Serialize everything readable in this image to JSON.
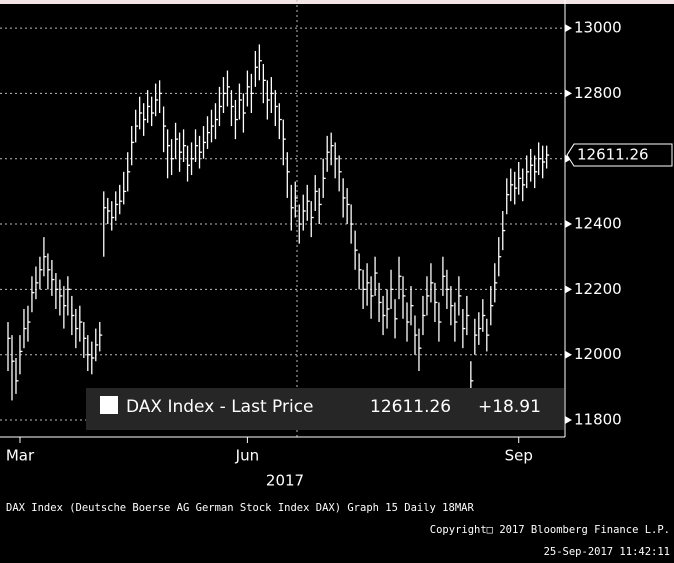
{
  "chart_data": {
    "type": "hlc",
    "ylim": [
      11748,
      13086
    ],
    "yticks": [
      11800,
      12000,
      12200,
      12400,
      12600,
      12800,
      13000
    ],
    "grid": true,
    "color": "#ffffff",
    "xticks": [
      {
        "value": 3,
        "label": "Mar"
      },
      {
        "value": 60,
        "label": "Jun"
      },
      {
        "value": 128,
        "label": "Sep"
      }
    ],
    "xlabel": "2017",
    "close": [
      12050,
      11980,
      11920,
      12010,
      12080,
      12100,
      12190,
      12220,
      12260,
      12300,
      12260,
      12230,
      12200,
      12180,
      12150,
      12200,
      12120,
      12080,
      12100,
      12050,
      12000,
      11990,
      12030,
      12060,
      12450,
      12440,
      12420,
      12460,
      12470,
      12500,
      12560,
      12650,
      12700,
      12740,
      12720,
      12760,
      12740,
      12780,
      12800,
      12700,
      12640,
      12600,
      12660,
      12620,
      12640,
      12580,
      12600,
      12640,
      12620,
      12650,
      12680,
      12700,
      12720,
      12760,
      12800,
      12820,
      12760,
      12720,
      12780,
      12740,
      12820,
      12800,
      12880,
      12900,
      12840,
      12780,
      12800,
      12760,
      12720,
      12660,
      12560,
      12450,
      12480,
      12400,
      12440,
      12470,
      12420,
      12500,
      12460,
      12540,
      12620,
      12640,
      12600,
      12560,
      12480,
      12460,
      12400,
      12320,
      12260,
      12200,
      12220,
      12180,
      12250,
      12160,
      12120,
      12140,
      12200,
      12110,
      12240,
      12180,
      12100,
      12150,
      12060,
      12020,
      12120,
      12180,
      12220,
      12160,
      12100,
      12240,
      12200,
      12150,
      12100,
      12180,
      12080,
      12120,
      11920,
      12060,
      12080,
      12120,
      12060,
      12150,
      12220,
      12300,
      12380,
      12490,
      12520,
      12510,
      12540,
      12520,
      12560,
      12580,
      12560,
      12600,
      12590,
      12611.26
    ],
    "high": [
      12100,
      12060,
      11990,
      12060,
      12140,
      12150,
      12240,
      12270,
      12300,
      12360,
      12310,
      12290,
      12250,
      12230,
      12210,
      12240,
      12180,
      12140,
      12150,
      12100,
      12060,
      12040,
      12080,
      12100,
      12500,
      12480,
      12470,
      12500,
      12520,
      12560,
      12620,
      12700,
      12750,
      12790,
      12770,
      12810,
      12790,
      12830,
      12840,
      12760,
      12690,
      12660,
      12710,
      12680,
      12690,
      12640,
      12650,
      12690,
      12670,
      12700,
      12730,
      12750,
      12770,
      12820,
      12850,
      12870,
      12810,
      12780,
      12830,
      12800,
      12870,
      12860,
      12930,
      12950,
      12890,
      12840,
      12850,
      12810,
      12770,
      12720,
      12620,
      12520,
      12530,
      12460,
      12490,
      12520,
      12470,
      12550,
      12510,
      12600,
      12670,
      12680,
      12650,
      12610,
      12540,
      12510,
      12460,
      12380,
      12310,
      12260,
      12280,
      12240,
      12300,
      12220,
      12180,
      12200,
      12260,
      12170,
      12300,
      12240,
      12160,
      12210,
      12120,
      12080,
      12180,
      12240,
      12280,
      12220,
      12160,
      12300,
      12260,
      12210,
      12160,
      12240,
      12140,
      12180,
      11980,
      12110,
      12130,
      12170,
      12110,
      12210,
      12280,
      12360,
      12440,
      12540,
      12570,
      12560,
      12590,
      12570,
      12610,
      12630,
      12610,
      12650,
      12640,
      12640
    ],
    "low": [
      11950,
      11860,
      11880,
      11940,
      12020,
      12040,
      12130,
      12170,
      12200,
      12240,
      12200,
      12180,
      12140,
      12120,
      12080,
      12120,
      12060,
      12020,
      12040,
      11990,
      11950,
      11940,
      11980,
      12010,
      12300,
      12400,
      12380,
      12410,
      12430,
      12460,
      12500,
      12580,
      12650,
      12690,
      12670,
      12710,
      12700,
      12730,
      12740,
      12620,
      12540,
      12550,
      12600,
      12560,
      12590,
      12530,
      12550,
      12590,
      12570,
      12600,
      12630,
      12650,
      12660,
      12700,
      12740,
      12760,
      12700,
      12660,
      12720,
      12680,
      12760,
      12740,
      12820,
      12840,
      12770,
      12720,
      12740,
      12700,
      12660,
      12580,
      12480,
      12380,
      12420,
      12340,
      12380,
      12410,
      12360,
      12440,
      12400,
      12480,
      12560,
      12580,
      12540,
      12500,
      12420,
      12400,
      12340,
      12260,
      12200,
      12140,
      12150,
      12110,
      12180,
      12100,
      12060,
      12080,
      12140,
      12050,
      12170,
      12110,
      12040,
      12090,
      12000,
      11950,
      12060,
      12120,
      12160,
      12100,
      12040,
      12180,
      12140,
      12090,
      12040,
      12120,
      12020,
      12060,
      11860,
      12000,
      12030,
      12070,
      12010,
      12090,
      12160,
      12240,
      12320,
      12430,
      12470,
      12460,
      12490,
      12470,
      12510,
      12530,
      12510,
      12550,
      12540,
      12570
    ],
    "legend": "DAX Index - Last Price",
    "last_price": 12611.26,
    "change": {
      "value": 18.91,
      "label": "+18.91"
    },
    "footer": [
      "DAX Index (Deutsche Boerse AG German Stock Index DAX) Graph 15  Daily 18MAR",
      "Copyright□ 2017 Bloomberg Finance L.P.",
      "25-Sep-2017 11:42:11"
    ]
  }
}
